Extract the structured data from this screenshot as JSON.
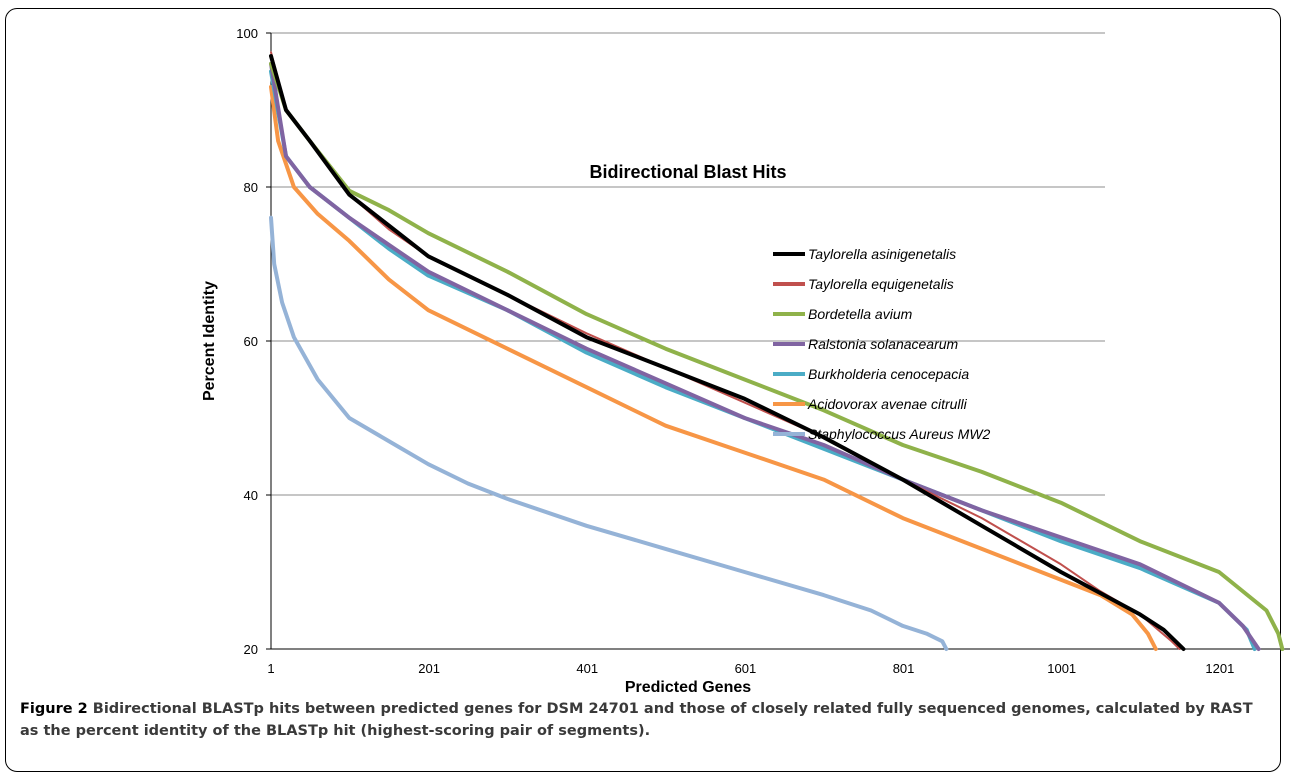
{
  "caption": {
    "label": "Figure 2",
    "text": "Bidirectional BLASTp hits between predicted genes for DSM 24701 and those of closely related fully sequenced genomes, calculated by RAST as the percent identity of the BLASTp hit (highest-scoring pair of segments)."
  },
  "chart_data": {
    "type": "line",
    "title": "Bidirectional Blast Hits",
    "xlabel": "Predicted Genes",
    "ylabel": "Percent Identity",
    "xlim": [
      1,
      1291
    ],
    "ylim": [
      20,
      100
    ],
    "x_ticks": [
      "1",
      "201",
      "401",
      "601",
      "801",
      "1001",
      "1201"
    ],
    "y_ticks": [
      "20",
      "40",
      "60",
      "80",
      "100"
    ],
    "grid": "horizontal",
    "legend_position": "right",
    "series": [
      {
        "name": "Taylorella asinigenetalis",
        "color": "#000000",
        "points": [
          [
            1,
            97
          ],
          [
            20,
            90
          ],
          [
            50,
            86
          ],
          [
            100,
            79
          ],
          [
            150,
            75
          ],
          [
            200,
            71
          ],
          [
            300,
            66
          ],
          [
            400,
            60.5
          ],
          [
            500,
            56.5
          ],
          [
            600,
            52.5
          ],
          [
            700,
            47.5
          ],
          [
            800,
            42
          ],
          [
            900,
            36
          ],
          [
            1000,
            30
          ],
          [
            1100,
            24.5
          ],
          [
            1130,
            22.5
          ],
          [
            1155,
            20
          ]
        ]
      },
      {
        "name": "Taylorella equigenetalis",
        "color": "#c0504d",
        "points": [
          [
            1,
            97.5
          ],
          [
            20,
            90
          ],
          [
            50,
            86
          ],
          [
            100,
            79
          ],
          [
            150,
            74.5
          ],
          [
            200,
            71
          ],
          [
            300,
            66
          ],
          [
            400,
            61
          ],
          [
            500,
            56.5
          ],
          [
            600,
            52
          ],
          [
            700,
            47.5
          ],
          [
            800,
            42
          ],
          [
            900,
            37
          ],
          [
            1000,
            31
          ],
          [
            1050,
            27.5
          ],
          [
            1100,
            24.5
          ],
          [
            1140,
            21
          ],
          [
            1150,
            20
          ]
        ]
      },
      {
        "name": "Bordetella avium",
        "color": "#8fb24a",
        "points": [
          [
            1,
            96
          ],
          [
            20,
            90
          ],
          [
            50,
            86
          ],
          [
            100,
            79.5
          ],
          [
            150,
            77
          ],
          [
            200,
            74
          ],
          [
            300,
            69
          ],
          [
            400,
            63.5
          ],
          [
            500,
            59
          ],
          [
            600,
            55
          ],
          [
            700,
            51
          ],
          [
            800,
            46.5
          ],
          [
            900,
            43
          ],
          [
            1000,
            39
          ],
          [
            1100,
            34
          ],
          [
            1200,
            30
          ],
          [
            1260,
            25
          ],
          [
            1275,
            22
          ],
          [
            1280,
            20
          ]
        ]
      },
      {
        "name": "Ralstonia solanacearum",
        "color": "#8064a2",
        "points": [
          [
            1,
            96
          ],
          [
            20,
            84
          ],
          [
            50,
            80
          ],
          [
            100,
            76
          ],
          [
            150,
            72.5
          ],
          [
            200,
            69
          ],
          [
            300,
            64
          ],
          [
            400,
            59
          ],
          [
            500,
            54.5
          ],
          [
            600,
            50
          ],
          [
            700,
            46.5
          ],
          [
            800,
            42
          ],
          [
            900,
            38
          ],
          [
            1000,
            34.5
          ],
          [
            1100,
            31
          ],
          [
            1200,
            26
          ],
          [
            1230,
            23
          ],
          [
            1250,
            20
          ]
        ]
      },
      {
        "name": "Burkholderia cenocepacia",
        "color": "#4bacc6",
        "points": [
          [
            1,
            95
          ],
          [
            20,
            84
          ],
          [
            50,
            80
          ],
          [
            100,
            76
          ],
          [
            150,
            72
          ],
          [
            200,
            68.5
          ],
          [
            300,
            64
          ],
          [
            400,
            58.5
          ],
          [
            500,
            54
          ],
          [
            600,
            50
          ],
          [
            700,
            46
          ],
          [
            800,
            42
          ],
          [
            900,
            38
          ],
          [
            1000,
            34
          ],
          [
            1100,
            30.5
          ],
          [
            1200,
            26
          ],
          [
            1235,
            22.5
          ],
          [
            1245,
            20
          ]
        ]
      },
      {
        "name": "Acidovorax avenae citrulli",
        "color": "#f79646",
        "points": [
          [
            1,
            93
          ],
          [
            10,
            86
          ],
          [
            30,
            80
          ],
          [
            60,
            76.5
          ],
          [
            100,
            73
          ],
          [
            150,
            68
          ],
          [
            200,
            64
          ],
          [
            300,
            59
          ],
          [
            400,
            54
          ],
          [
            500,
            49
          ],
          [
            600,
            45.5
          ],
          [
            700,
            42
          ],
          [
            800,
            37
          ],
          [
            900,
            33
          ],
          [
            1000,
            29
          ],
          [
            1050,
            27
          ],
          [
            1090,
            24.5
          ],
          [
            1110,
            22
          ],
          [
            1120,
            20
          ]
        ]
      },
      {
        "name": "Staphylococcus Aureus MW2",
        "color": "#95b3d7",
        "points": [
          [
            1,
            76
          ],
          [
            5,
            70
          ],
          [
            15,
            65
          ],
          [
            30,
            60.5
          ],
          [
            60,
            55
          ],
          [
            100,
            50
          ],
          [
            150,
            47
          ],
          [
            200,
            44
          ],
          [
            250,
            41.5
          ],
          [
            300,
            39.5
          ],
          [
            400,
            36
          ],
          [
            500,
            33
          ],
          [
            600,
            30
          ],
          [
            700,
            27
          ],
          [
            760,
            25
          ],
          [
            800,
            23
          ],
          [
            830,
            22
          ],
          [
            850,
            21
          ],
          [
            855,
            20
          ]
        ]
      }
    ]
  }
}
